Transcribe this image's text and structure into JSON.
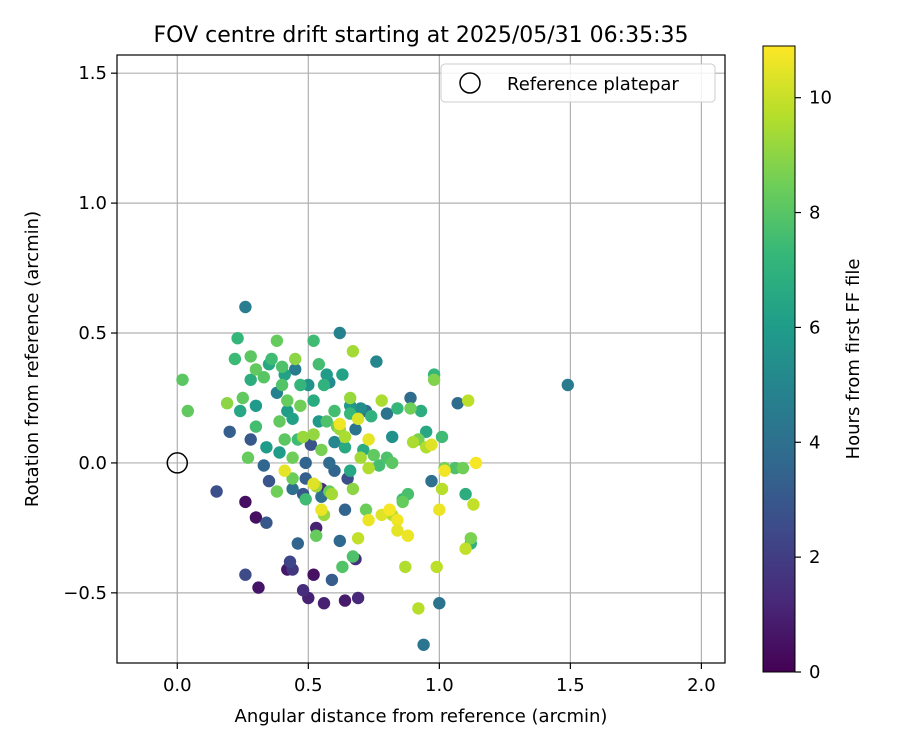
{
  "chart_data": {
    "type": "scatter",
    "title": "FOV centre drift starting at 2025/05/31 06:35:35",
    "xlabel": "Angular distance from reference (arcmin)",
    "ylabel": "Rotation from reference (arcmin)",
    "xlim": [
      -0.23,
      2.09
    ],
    "ylim": [
      -0.77,
      1.57
    ],
    "xticks": [
      0.0,
      0.5,
      1.0,
      1.5,
      2.0
    ],
    "xtick_labels": [
      "0.0",
      "0.5",
      "1.0",
      "1.5",
      "2.0"
    ],
    "yticks": [
      -0.5,
      0.0,
      0.5,
      1.0,
      1.5
    ],
    "ytick_labels": [
      "−0.5",
      "0.0",
      "0.5",
      "1.0",
      "1.5"
    ],
    "grid": true,
    "legend": {
      "position": "top-right",
      "label": "Reference platepar"
    },
    "reference_point": {
      "x": 0.0,
      "y": 0.0
    },
    "colorbar": {
      "label": "Hours from first FF file",
      "min": 0,
      "max": 10.9,
      "ticks": [
        0,
        2,
        4,
        6,
        8,
        10
      ],
      "tick_labels": [
        "0",
        "2",
        "4",
        "6",
        "8",
        "10"
      ],
      "colormap": "viridis",
      "stops": [
        "#440154",
        "#482878",
        "#3e4989",
        "#31688e",
        "#26828e",
        "#1f9e89",
        "#35b779",
        "#6ece58",
        "#b5de2b",
        "#fde725"
      ]
    },
    "points": [
      [
        0.26,
        -0.15,
        0.4
      ],
      [
        0.3,
        -0.21,
        0.5
      ],
      [
        0.31,
        -0.48,
        0.6
      ],
      [
        0.42,
        -0.41,
        0.7
      ],
      [
        0.52,
        -0.43,
        0.5
      ],
      [
        0.5,
        -0.52,
        1.0
      ],
      [
        0.56,
        -0.54,
        1.0
      ],
      [
        0.64,
        -0.53,
        0.8
      ],
      [
        0.69,
        -0.52,
        1.2
      ],
      [
        0.48,
        -0.49,
        1.4
      ],
      [
        0.53,
        -0.25,
        1.0
      ],
      [
        0.55,
        -0.1,
        1.3
      ],
      [
        0.68,
        -0.37,
        1.5
      ],
      [
        0.44,
        -0.41,
        1.8
      ],
      [
        0.43,
        -0.38,
        2.3
      ],
      [
        0.26,
        -0.43,
        2.5
      ],
      [
        0.15,
        -0.11,
        2.7
      ],
      [
        0.34,
        -0.23,
        3.0
      ],
      [
        0.46,
        -0.31,
        3.5
      ],
      [
        0.59,
        -0.45,
        3.2
      ],
      [
        0.48,
        -0.12,
        3.0
      ],
      [
        0.35,
        -0.07,
        2.9
      ],
      [
        0.49,
        -0.06,
        3.3
      ],
      [
        0.51,
        0.07,
        2.8
      ],
      [
        0.62,
        -0.3,
        3.7
      ],
      [
        0.64,
        -0.18,
        3.5
      ],
      [
        0.6,
        -0.03,
        3.6
      ],
      [
        0.65,
        -0.06,
        2.6
      ],
      [
        0.2,
        0.12,
        3.3
      ],
      [
        0.28,
        0.09,
        3.0
      ],
      [
        0.33,
        -0.01,
        3.6
      ],
      [
        0.49,
        0.0,
        3.5
      ],
      [
        0.44,
        -0.1,
        4.0
      ],
      [
        0.58,
        0.0,
        3.8
      ],
      [
        0.55,
        -0.13,
        4.0
      ],
      [
        0.68,
        0.13,
        4.2
      ],
      [
        0.72,
        0.2,
        4.0
      ],
      [
        0.89,
        0.25,
        3.8
      ],
      [
        0.8,
        0.19,
        4.2
      ],
      [
        0.97,
        -0.07,
        4.0
      ],
      [
        1.07,
        0.23,
        3.8
      ],
      [
        1.0,
        -0.54,
        4.2
      ],
      [
        0.94,
        -0.7,
        4.3
      ],
      [
        1.49,
        0.3,
        4.5
      ],
      [
        0.26,
        0.6,
        4.6
      ],
      [
        0.62,
        0.5,
        4.8
      ],
      [
        0.76,
        0.39,
        5.0
      ],
      [
        0.45,
        0.36,
        4.5
      ],
      [
        0.38,
        0.27,
        4.8
      ],
      [
        0.58,
        0.31,
        5.2
      ],
      [
        0.6,
        0.08,
        5.0
      ],
      [
        0.82,
        0.1,
        5.5
      ],
      [
        0.7,
        0.21,
        5.3
      ],
      [
        0.5,
        0.3,
        5.6
      ],
      [
        0.54,
        0.16,
        5.8
      ],
      [
        0.42,
        0.2,
        6.0
      ],
      [
        0.66,
        0.22,
        5.8
      ],
      [
        0.63,
        0.34,
        6.3
      ],
      [
        0.41,
        0.34,
        6.2
      ],
      [
        0.35,
        0.38,
        6.5
      ],
      [
        0.28,
        0.32,
        6.8
      ],
      [
        0.24,
        0.2,
        6.5
      ],
      [
        0.3,
        0.22,
        5.9
      ],
      [
        0.34,
        0.06,
        6.0
      ],
      [
        0.39,
        0.04,
        6.0
      ],
      [
        0.44,
        0.17,
        6.2
      ],
      [
        0.52,
        0.24,
        6.7
      ],
      [
        0.57,
        0.34,
        6.0
      ],
      [
        0.64,
        0.06,
        6.6
      ],
      [
        0.66,
        -0.03,
        6.5
      ],
      [
        0.71,
        0.05,
        6.7
      ],
      [
        0.74,
        0.18,
        7.0
      ],
      [
        0.93,
        0.2,
        6.8
      ],
      [
        0.95,
        0.12,
        6.5
      ],
      [
        0.98,
        0.34,
        7.2
      ],
      [
        0.84,
        0.21,
        7.2
      ],
      [
        1.1,
        -0.12,
        6.8
      ],
      [
        1.12,
        -0.31,
        7.0
      ],
      [
        0.23,
        0.48,
        7.2
      ],
      [
        0.22,
        0.4,
        7.4
      ],
      [
        0.3,
        0.14,
        7.6
      ],
      [
        0.36,
        0.4,
        7.5
      ],
      [
        0.4,
        0.37,
        7.8
      ],
      [
        0.52,
        0.47,
        7.5
      ],
      [
        0.54,
        0.38,
        7.6
      ],
      [
        0.56,
        0.3,
        7.0
      ],
      [
        0.47,
        0.3,
        7.2
      ],
      [
        0.46,
        0.09,
        7.5
      ],
      [
        0.49,
        -0.14,
        7.5
      ],
      [
        0.57,
        0.16,
        7.8
      ],
      [
        0.6,
        0.2,
        7.6
      ],
      [
        0.66,
        0.19,
        7.3
      ],
      [
        0.67,
        -0.36,
        7.8
      ],
      [
        0.63,
        -0.4,
        7.9
      ],
      [
        0.77,
        -0.01,
        7.6
      ],
      [
        0.8,
        0.02,
        7.8
      ],
      [
        0.86,
        -0.14,
        7.5
      ],
      [
        0.88,
        -0.12,
        7.7
      ],
      [
        1.01,
        0.1,
        7.5
      ],
      [
        1.06,
        -0.02,
        7.8
      ],
      [
        0.02,
        0.32,
        8.1
      ],
      [
        0.04,
        0.2,
        8.2
      ],
      [
        0.25,
        0.25,
        8.2
      ],
      [
        0.28,
        0.41,
        8.1
      ],
      [
        0.3,
        0.36,
        8.2
      ],
      [
        0.38,
        0.47,
        8.3
      ],
      [
        0.33,
        0.33,
        8.0
      ],
      [
        0.4,
        0.3,
        7.9
      ],
      [
        0.42,
        0.24,
        8.3
      ],
      [
        0.47,
        0.22,
        8.5
      ],
      [
        0.27,
        0.02,
        8.3
      ],
      [
        0.39,
        0.16,
        8.2
      ],
      [
        0.41,
        0.09,
        8.1
      ],
      [
        0.44,
        -0.06,
        8.4
      ],
      [
        0.38,
        -0.11,
        8.5
      ],
      [
        0.44,
        0.02,
        8.5
      ],
      [
        0.53,
        -0.28,
        8.3
      ],
      [
        0.55,
        0.05,
        8.6
      ],
      [
        0.58,
        -0.11,
        8.3
      ],
      [
        0.61,
        0.14,
        8.5
      ],
      [
        0.72,
        -0.18,
        8.4
      ],
      [
        0.75,
        0.03,
        8.2
      ],
      [
        0.82,
        0.0,
        8.1
      ],
      [
        0.86,
        -0.15,
        8.3
      ],
      [
        0.89,
        0.21,
        8.5
      ],
      [
        0.92,
        0.09,
        8.6
      ],
      [
        0.98,
        0.32,
        8.8
      ],
      [
        1.02,
        -0.02,
        8.6
      ],
      [
        1.09,
        -0.02,
        8.5
      ],
      [
        1.12,
        -0.29,
        8.7
      ],
      [
        0.19,
        0.23,
        9.0
      ],
      [
        0.45,
        0.4,
        9.0
      ],
      [
        0.48,
        0.1,
        9.2
      ],
      [
        0.52,
        0.11,
        9.1
      ],
      [
        0.53,
        -0.09,
        9.3
      ],
      [
        0.56,
        -0.2,
        9.2
      ],
      [
        0.59,
        -0.12,
        9.4
      ],
      [
        0.62,
        0.13,
        9.3
      ],
      [
        0.64,
        0.1,
        9.5
      ],
      [
        0.66,
        0.25,
        9.2
      ],
      [
        0.67,
        0.43,
        9.4
      ],
      [
        0.67,
        -0.1,
        9.0
      ],
      [
        0.7,
        0.02,
        9.4
      ],
      [
        0.73,
        -0.02,
        9.6
      ],
      [
        0.78,
        0.24,
        9.5
      ],
      [
        0.82,
        -0.2,
        9.7
      ],
      [
        0.87,
        -0.4,
        9.6
      ],
      [
        0.9,
        0.08,
        9.5
      ],
      [
        0.92,
        -0.56,
        9.7
      ],
      [
        0.95,
        0.06,
        9.6
      ],
      [
        0.99,
        -0.4,
        9.8
      ],
      [
        1.01,
        -0.1,
        9.7
      ],
      [
        1.1,
        -0.33,
        9.9
      ],
      [
        1.11,
        0.24,
        9.8
      ],
      [
        1.13,
        -0.16,
        9.9
      ],
      [
        0.69,
        -0.29,
        9.9
      ],
      [
        0.41,
        -0.03,
        10.5
      ],
      [
        0.52,
        -0.08,
        10.4
      ],
      [
        0.55,
        -0.18,
        10.6
      ],
      [
        0.62,
        0.15,
        10.7
      ],
      [
        0.69,
        0.17,
        10.3
      ],
      [
        0.73,
        0.09,
        10.5
      ],
      [
        0.73,
        -0.22,
        10.6
      ],
      [
        0.78,
        -0.2,
        10.4
      ],
      [
        0.81,
        -0.18,
        10.8
      ],
      [
        0.84,
        -0.22,
        10.7
      ],
      [
        0.84,
        -0.26,
        10.5
      ],
      [
        0.88,
        -0.28,
        10.6
      ],
      [
        0.97,
        0.07,
        10.4
      ],
      [
        1.0,
        -0.18,
        10.6
      ],
      [
        1.02,
        -0.03,
        10.7
      ],
      [
        1.14,
        0.0,
        10.8
      ]
    ]
  }
}
